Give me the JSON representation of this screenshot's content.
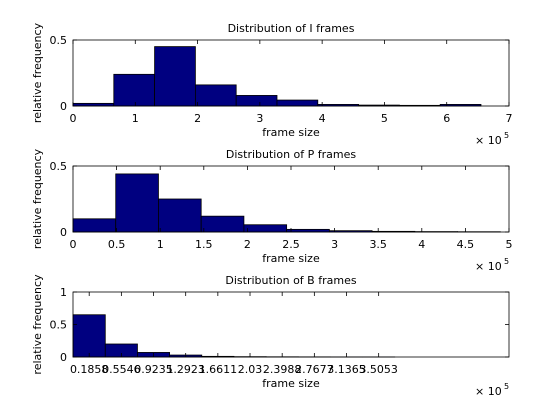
{
  "figure_bg": "#ffffff",
  "bar_color": "#000080",
  "chart_data": [
    {
      "type": "bar",
      "title": "Distribution of I frames",
      "xlabel": "frame size",
      "ylabel": "relative frequency",
      "multiplier": "× 10",
      "multiplier_exp": "5",
      "xlim": [
        0,
        7
      ],
      "ylim": [
        0,
        0.5
      ],
      "xticks": [
        0,
        1,
        2,
        3,
        4,
        5,
        6,
        7
      ],
      "xtick_labels": [
        "0",
        "1",
        "2",
        "3",
        "4",
        "5",
        "6",
        "7"
      ],
      "yticks": [
        0,
        0.5
      ],
      "ytick_labels": [
        "0",
        "0.5"
      ],
      "bins": [
        {
          "x0": 0.0,
          "x1": 0.655,
          "value": 0.02
        },
        {
          "x0": 0.655,
          "x1": 1.31,
          "value": 0.24
        },
        {
          "x0": 1.31,
          "x1": 1.965,
          "value": 0.45
        },
        {
          "x0": 1.965,
          "x1": 2.62,
          "value": 0.16
        },
        {
          "x0": 2.62,
          "x1": 3.275,
          "value": 0.08
        },
        {
          "x0": 3.275,
          "x1": 3.93,
          "value": 0.045
        },
        {
          "x0": 3.93,
          "x1": 4.585,
          "value": 0.012
        },
        {
          "x0": 4.585,
          "x1": 5.24,
          "value": 0.007
        },
        {
          "x0": 5.24,
          "x1": 5.895,
          "value": 0.005
        },
        {
          "x0": 5.895,
          "x1": 6.55,
          "value": 0.012
        }
      ]
    },
    {
      "type": "bar",
      "title": "Distribution of P frames",
      "xlabel": "frame size",
      "ylabel": "relative frequency",
      "multiplier": "× 10",
      "multiplier_exp": "5",
      "xlim": [
        0,
        5
      ],
      "ylim": [
        0,
        0.5
      ],
      "xticks": [
        0,
        0.5,
        1,
        1.5,
        2,
        2.5,
        3,
        3.5,
        4,
        4.5,
        5
      ],
      "xtick_labels": [
        "0",
        "0.5",
        "1",
        "1.5",
        "2",
        "2.5",
        "3",
        "3.5",
        "4",
        "4.5",
        "5"
      ],
      "yticks": [
        0,
        0.5
      ],
      "ytick_labels": [
        "0",
        "0.5"
      ],
      "bins": [
        {
          "x0": 0.0,
          "x1": 0.49,
          "value": 0.1
        },
        {
          "x0": 0.49,
          "x1": 0.98,
          "value": 0.44
        },
        {
          "x0": 0.98,
          "x1": 1.47,
          "value": 0.25
        },
        {
          "x0": 1.47,
          "x1": 1.96,
          "value": 0.12
        },
        {
          "x0": 1.96,
          "x1": 2.45,
          "value": 0.055
        },
        {
          "x0": 2.45,
          "x1": 2.94,
          "value": 0.02
        },
        {
          "x0": 2.94,
          "x1": 3.43,
          "value": 0.01
        },
        {
          "x0": 3.43,
          "x1": 3.92,
          "value": 0.005
        },
        {
          "x0": 3.92,
          "x1": 4.41,
          "value": 0.003
        },
        {
          "x0": 4.41,
          "x1": 4.9,
          "value": 0.002
        }
      ]
    },
    {
      "type": "bar",
      "title": "Distribution of B frames",
      "xlabel": "frame size",
      "ylabel": "relative frequency",
      "multiplier": "× 10",
      "multiplier_exp": "5",
      "xlim": [
        0,
        5
      ],
      "ylim": [
        0,
        1
      ],
      "xticks": [
        0.1858,
        0.5546,
        0.9235,
        1.2923,
        1.6611,
        2.03,
        2.3988,
        2.7677,
        3.1365,
        3.5053
      ],
      "xtick_labels": [
        "0.1858",
        "0.5546",
        "0.9235",
        "1.2923",
        "1.6611",
        "2.03",
        "2.3988",
        "2.7677",
        "3.1365",
        "3.5053"
      ],
      "yticks": [
        0,
        0.5,
        1
      ],
      "ytick_labels": [
        "0",
        "0.5",
        "1"
      ],
      "bins": [
        {
          "x0": 0.0014,
          "x1": 0.3702,
          "value": 0.65
        },
        {
          "x0": 0.3702,
          "x1": 0.739,
          "value": 0.2
        },
        {
          "x0": 0.739,
          "x1": 1.1079,
          "value": 0.07
        },
        {
          "x0": 1.1079,
          "x1": 1.4767,
          "value": 0.03
        },
        {
          "x0": 1.4767,
          "x1": 1.8455,
          "value": 0.01
        },
        {
          "x0": 1.8455,
          "x1": 2.2144,
          "value": 0.005
        },
        {
          "x0": 2.2144,
          "x1": 2.5832,
          "value": 0.003
        },
        {
          "x0": 2.5832,
          "x1": 2.9521,
          "value": 0.002
        },
        {
          "x0": 2.9521,
          "x1": 3.3209,
          "value": 0.001
        },
        {
          "x0": 3.3209,
          "x1": 3.6897,
          "value": 0.001
        }
      ]
    }
  ]
}
